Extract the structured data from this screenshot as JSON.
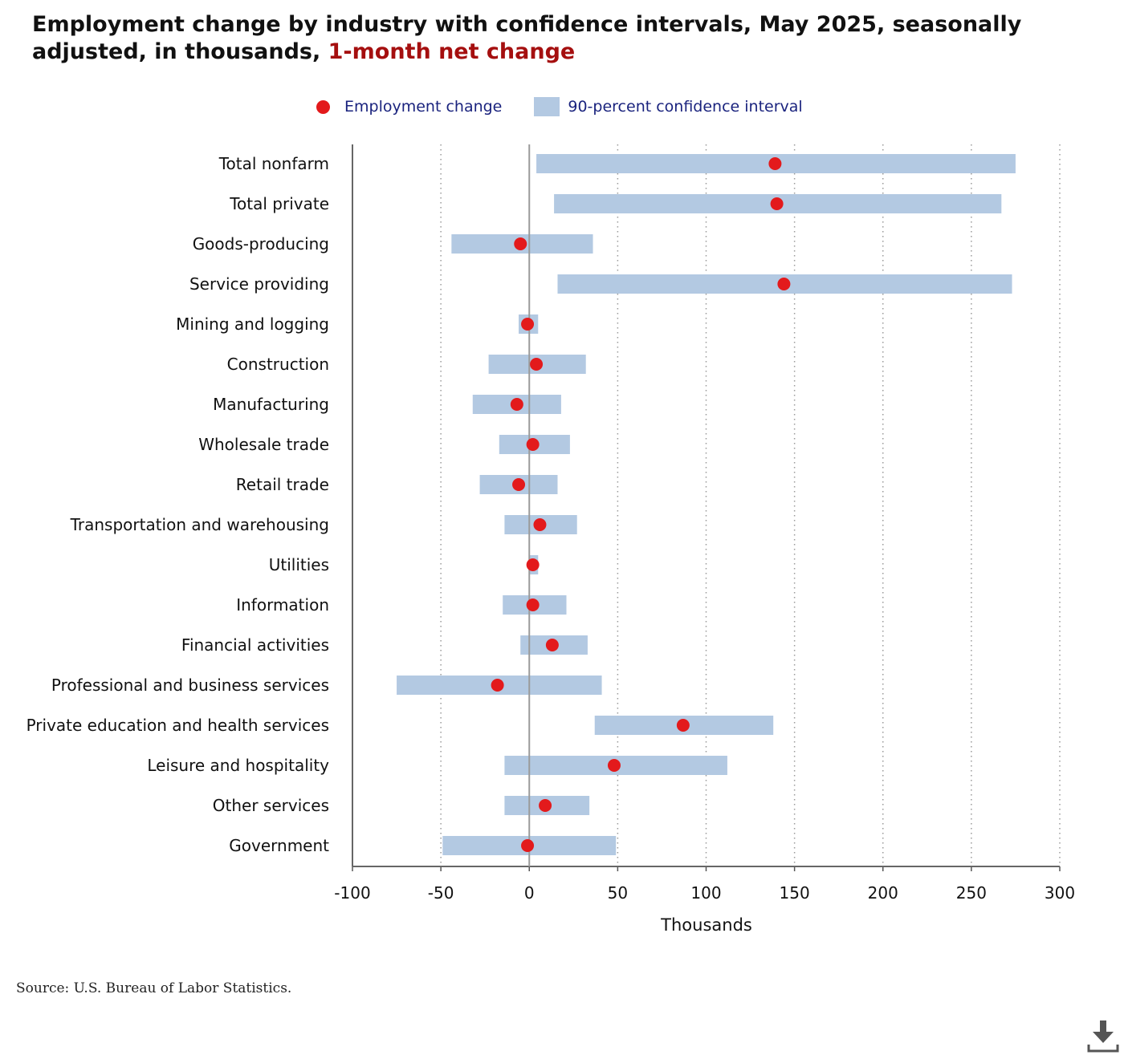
{
  "title": {
    "main": "Employment change by industry with confidence intervals, May 2025, seasonally adjusted, in thousands, ",
    "highlight": "1-month net change"
  },
  "legend": {
    "point_label": "Employment change",
    "interval_label": "90-percent confidence interval"
  },
  "source": "Source: U.S. Bureau of Labor Statistics.",
  "colors": {
    "point": "#e31a1c",
    "interval": "#b3c9e2",
    "highlight": "#a50f0f",
    "legend_text": "#1a237e"
  },
  "icons": {
    "download": "download-icon"
  },
  "chart_data": {
    "type": "scatter",
    "orientation": "horizontal",
    "xlabel": "Thousands",
    "xlim": [
      -100,
      300
    ],
    "xticks": [
      -100,
      -50,
      0,
      50,
      100,
      150,
      200,
      250,
      300
    ],
    "grid": true,
    "legend_position": "top",
    "categories": [
      "Total nonfarm",
      "Total private",
      "Goods-producing",
      "Service providing",
      "Mining and logging",
      "Construction",
      "Manufacturing",
      "Wholesale trade",
      "Retail trade",
      "Transportation and warehousing",
      "Utilities",
      "Information",
      "Financial activities",
      "Professional and business services",
      "Private education and health services",
      "Leisure and hospitality",
      "Other services",
      "Government"
    ],
    "series": [
      {
        "name": "Employment change",
        "values": [
          139,
          140,
          -5,
          144,
          -1,
          4,
          -7,
          2,
          -6,
          6,
          2,
          2,
          13,
          -18,
          87,
          48,
          9,
          -1
        ]
      },
      {
        "name": "90-percent confidence interval",
        "low": [
          4,
          14,
          -44,
          16,
          -6,
          -23,
          -32,
          -17,
          -28,
          -14,
          0,
          -15,
          -5,
          -75,
          37,
          -14,
          -14,
          -49
        ],
        "high": [
          275,
          267,
          36,
          273,
          5,
          32,
          18,
          23,
          16,
          27,
          5,
          21,
          33,
          41,
          138,
          112,
          34,
          49
        ]
      }
    ]
  }
}
